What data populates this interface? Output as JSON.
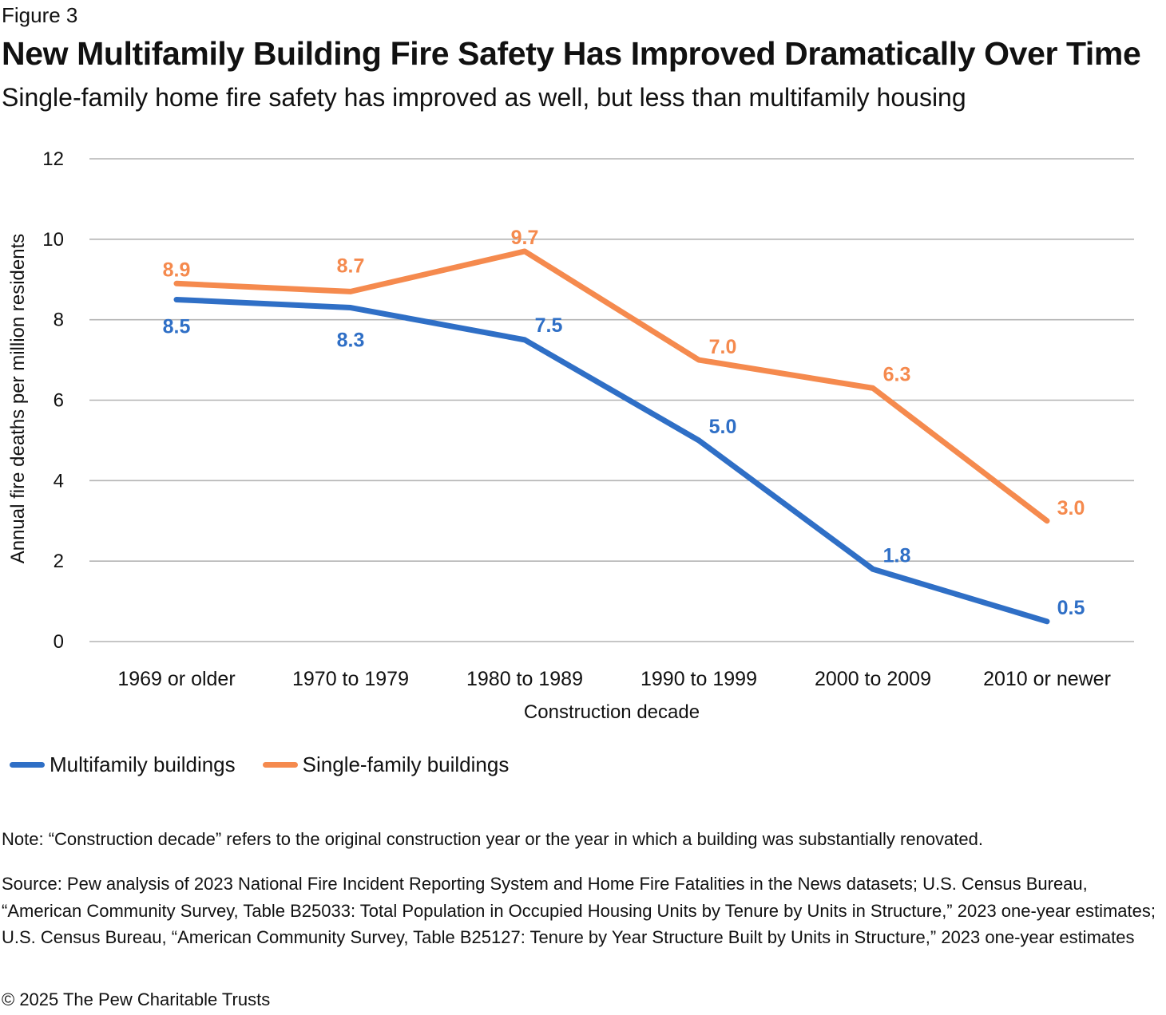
{
  "figure_label": "Figure 3",
  "title": "New Multifamily Building Fire Safety Has Improved Dramatically Over Time",
  "subtitle": "Single-family home fire safety has improved as well, but less than multifamily housing",
  "chart_data": {
    "type": "line",
    "categories": [
      "1969 or older",
      "1970 to 1979",
      "1980 to 1989",
      "1990 to 1999",
      "2000 to 2009",
      "2010 or newer"
    ],
    "series": [
      {
        "name": "Multifamily buildings",
        "color": "#2f6fc6",
        "values": [
          8.5,
          8.3,
          7.5,
          5.0,
          1.8,
          0.5
        ],
        "labels": [
          "8.5",
          "8.3",
          "7.5",
          "5.0",
          "1.8",
          "0.5"
        ]
      },
      {
        "name": "Single-family buildings",
        "color": "#f58a4e",
        "values": [
          8.9,
          8.7,
          9.7,
          7.0,
          6.3,
          3.0
        ],
        "labels": [
          "8.9",
          "8.7",
          "9.7",
          "7.0",
          "6.3",
          "3.0"
        ]
      }
    ],
    "xlabel": "Construction decade",
    "ylabel": "Annual fire deaths per million residents",
    "ylim": [
      0,
      12
    ],
    "yticks": [
      "0",
      "2",
      "4",
      "6",
      "8",
      "10",
      "12"
    ],
    "grid": true,
    "legend_position": "bottom-left"
  },
  "note": "Note: “Construction decade” refers to the original construction year or the year in which a building was substantially renovated.",
  "source": "Source: Pew analysis of 2023 National Fire Incident Reporting System and Home Fire Fatalities in the News datasets; U.S. Census Bureau, “American Community Survey, Table B25033: Total Population in Occupied Housing Units by Tenure by Units in Structure,” 2023 one-year estimates; U.S. Census Bureau, “American Community Survey, Table B25127: Tenure by Year Structure Built by Units in Structure,” 2023 one-year estimates",
  "copyright": "© 2025 The Pew Charitable Trusts"
}
